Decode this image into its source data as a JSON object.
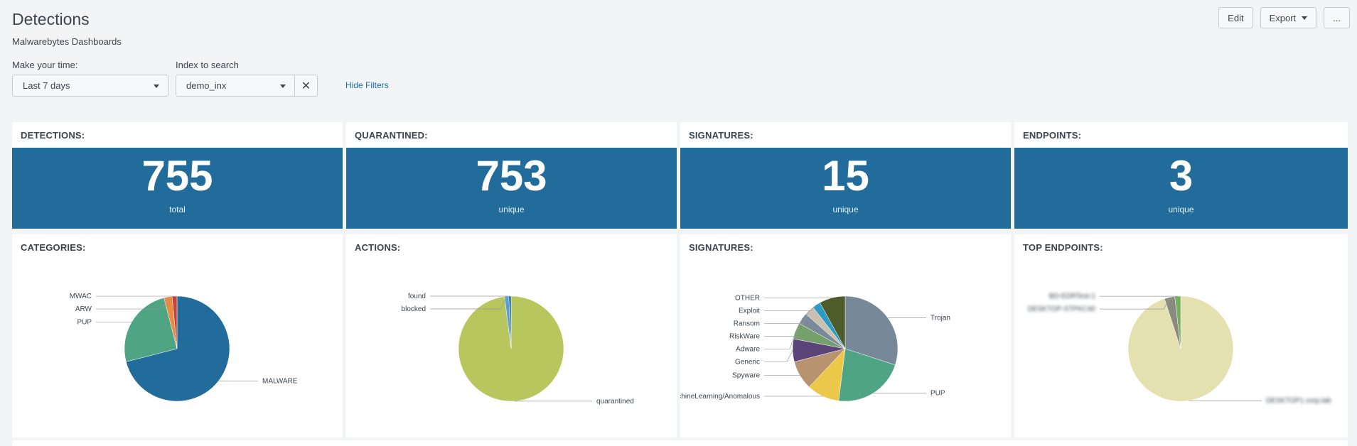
{
  "header": {
    "title": "Detections",
    "subtitle": "Malwarebytes Dashboards",
    "edit_label": "Edit",
    "export_label": "Export",
    "more_label": "..."
  },
  "filters": {
    "time_label": "Make your time:",
    "time_value": "Last 7 days",
    "index_label": "Index to search",
    "index_value": "demo_inx",
    "hide_filters_label": "Hide Filters"
  },
  "singles": [
    {
      "title": "DETECTIONS:",
      "value": "755",
      "unit": "total"
    },
    {
      "title": "QUARANTINED:",
      "value": "753",
      "unit": "unique"
    },
    {
      "title": "SIGNATURES:",
      "value": "15",
      "unit": "unique"
    },
    {
      "title": "ENDPOINTS:",
      "value": "3",
      "unit": "unique"
    }
  ],
  "pie_titles": [
    "CATEGORIES:",
    "ACTIONS:",
    "SIGNATURES:",
    "TOP ENDPOINTS:"
  ],
  "chart_data": [
    {
      "type": "pie",
      "title": "CATEGORIES:",
      "slices": [
        {
          "label": "MALWARE",
          "value": 71,
          "color": "#226c9b"
        },
        {
          "label": "PUP",
          "value": 25,
          "color": "#4fa484"
        },
        {
          "label": "ARW",
          "value": 2.5,
          "color": "#e88c44"
        },
        {
          "label": "MWAC",
          "value": 1.5,
          "color": "#c9423a"
        }
      ]
    },
    {
      "type": "pie",
      "title": "ACTIONS:",
      "slices": [
        {
          "label": "quarantined",
          "value": 98,
          "color": "#b8c65e"
        },
        {
          "label": "blocked",
          "value": 1.3,
          "color": "#5aa0cf"
        },
        {
          "label": "found",
          "value": 0.7,
          "color": "#226c9b"
        }
      ]
    },
    {
      "type": "pie",
      "title": "SIGNATURES:",
      "slices": [
        {
          "label": "Trojan",
          "value": 30,
          "color": "#778899"
        },
        {
          "label": "PUP",
          "value": 22,
          "color": "#4fa484"
        },
        {
          "label": "MachineLearning/Anomalous",
          "value": 10,
          "color": "#ecc84a"
        },
        {
          "label": "Spyware",
          "value": 9,
          "color": "#b89370"
        },
        {
          "label": "Generic",
          "value": 7,
          "color": "#5a4478"
        },
        {
          "label": "Adware",
          "value": 5,
          "color": "#74a06c"
        },
        {
          "label": "RiskWare",
          "value": 3.5,
          "color": "#7a8a9a"
        },
        {
          "label": "Ransom",
          "value": 3,
          "color": "#c9c0b0"
        },
        {
          "label": "Exploit",
          "value": 2.5,
          "color": "#2c9cc4"
        },
        {
          "label": "OTHER",
          "value": 8,
          "color": "#4e5c2c"
        }
      ]
    },
    {
      "type": "pie",
      "title": "TOP ENDPOINTS:",
      "slices": [
        {
          "label": "DESKTOP1.corp.lab",
          "value": 95,
          "color": "#e5e0b0"
        },
        {
          "label": "DESKTOP-STPKC40",
          "value": 3.2,
          "color": "#8a8a80"
        },
        {
          "label": "BD-EDRTest-1",
          "value": 1.8,
          "color": "#74b060"
        }
      ]
    }
  ]
}
